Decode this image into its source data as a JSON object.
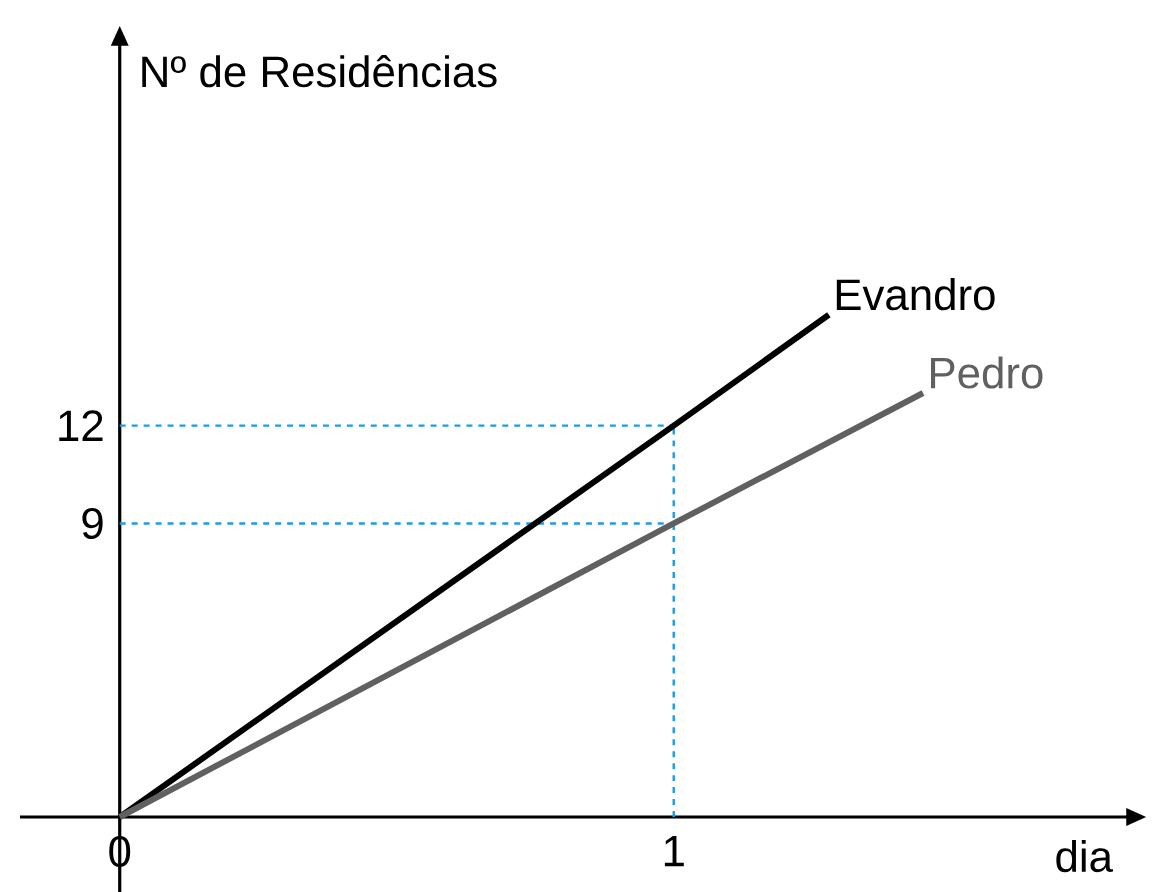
{
  "chart_data": {
    "type": "line",
    "xlabel": "dia",
    "ylabel": "Nº de Residências",
    "xlim": [
      -0.18,
      1.82
    ],
    "ylim": [
      -2.3,
      23.7
    ],
    "xticks": [
      0,
      1
    ],
    "yticks": [
      9,
      12
    ],
    "series": [
      {
        "name": "Evandro",
        "color": "#000000",
        "x": [
          0,
          1,
          1.28
        ],
        "values": [
          0,
          12,
          15.4
        ]
      },
      {
        "name": "Pedro",
        "color": "#606060",
        "x": [
          0,
          1,
          1.45
        ],
        "values": [
          0,
          9,
          13.0
        ]
      }
    ],
    "ref_lines": [
      {
        "axis": "y",
        "value": 12,
        "color": "#1e9be8",
        "line_style": "dashed"
      },
      {
        "axis": "y",
        "value": 9,
        "color": "#1e9be8",
        "line_style": "dashed"
      },
      {
        "axis": "x",
        "value": 1,
        "color": "#1e9be8",
        "line_style": "dashed"
      }
    ],
    "legend": false,
    "grid": false,
    "marker": "none",
    "line_style": "solid"
  }
}
